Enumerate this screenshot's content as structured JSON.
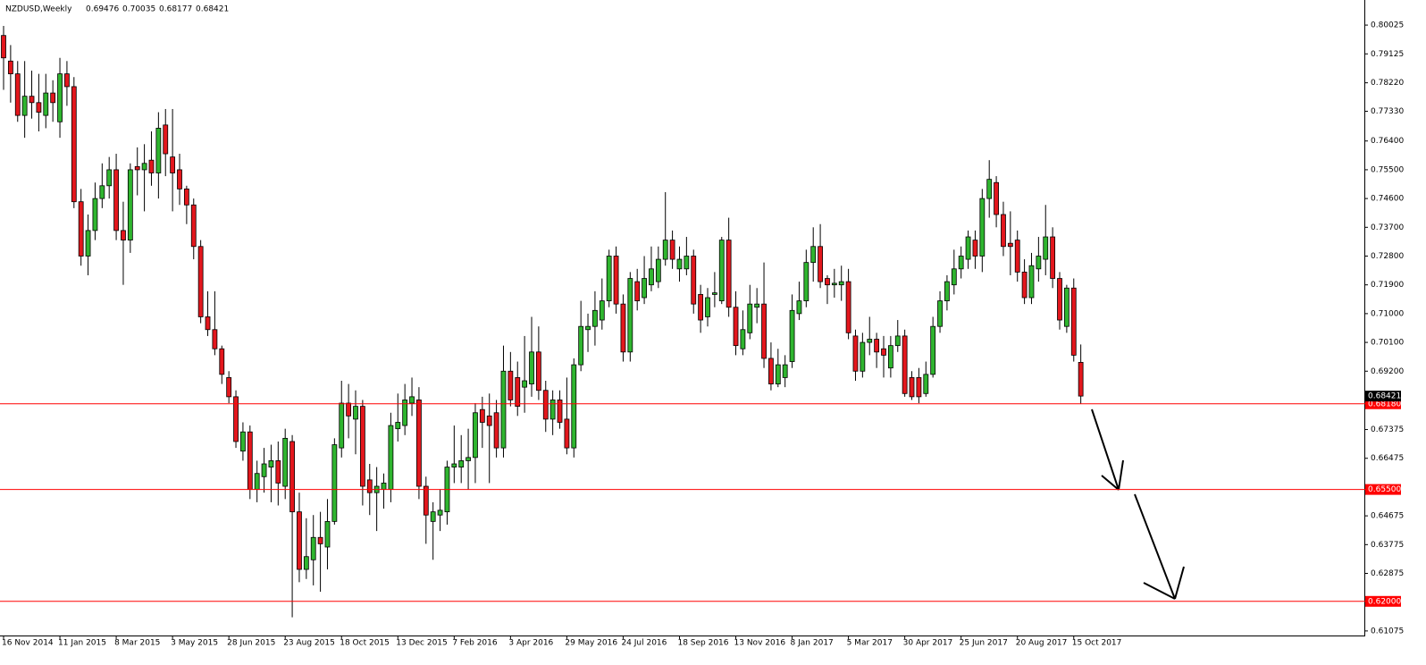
{
  "chart_data": {
    "type": "candlestick",
    "symbol": "NZDUSD,Weekly",
    "bull_color": "#2fb52f",
    "bear_color": "#e3171d",
    "level_color": "#ff0000",
    "ylim": [
      0.6096,
      0.8067
    ],
    "yticks": [
      0.80025,
      0.79125,
      {
        "value": 0.7822,
        "label": "0.78220"
      },
      {
        "value": 0.7733,
        "label": "0.77330"
      },
      {
        "value": 0.764,
        "label": "0.76400"
      },
      {
        "value": 0.755,
        "label": "0.75500"
      },
      {
        "value": 0.746,
        "label": "0.74600"
      },
      {
        "value": 0.737,
        "label": "0.73700"
      },
      {
        "value": 0.728,
        "label": "0.72800"
      },
      {
        "value": 0.719,
        "label": "0.71900"
      },
      {
        "value": 0.71,
        "label": "0.71000"
      },
      {
        "value": 0.701,
        "label": "0.70100"
      },
      {
        "value": 0.692,
        "label": "0.69200"
      },
      0.67375,
      0.66475,
      0.64675,
      0.63775,
      0.62875,
      0.61075
    ],
    "levels": [
      {
        "value": 0.6818,
        "label": "0.68180"
      },
      {
        "value": 0.655,
        "label": "0.65500"
      },
      {
        "value": 0.62,
        "label": "0.62000"
      }
    ],
    "categories": [
      "16 Nov 2014",
      null,
      null,
      null,
      null,
      null,
      null,
      null,
      "11 Jan 2015",
      null,
      null,
      null,
      null,
      null,
      null,
      null,
      "8 Mar 2015",
      null,
      null,
      null,
      null,
      null,
      null,
      null,
      "3 May 2015",
      null,
      null,
      null,
      null,
      null,
      null,
      null,
      "28 Jun 2015",
      null,
      null,
      null,
      null,
      null,
      null,
      null,
      "23 Aug 2015",
      null,
      null,
      null,
      null,
      null,
      null,
      null,
      "18 Oct 2015",
      null,
      null,
      null,
      null,
      null,
      null,
      null,
      "13 Dec 2015",
      null,
      null,
      null,
      null,
      null,
      null,
      null,
      "7 Feb 2016",
      null,
      null,
      null,
      null,
      null,
      null,
      null,
      "3 Apr 2016",
      null,
      null,
      null,
      null,
      null,
      null,
      null,
      "29 May 2016",
      null,
      null,
      null,
      null,
      null,
      null,
      null,
      "24 Jul 2016",
      null,
      null,
      null,
      null,
      null,
      null,
      null,
      "18 Sep 2016",
      null,
      null,
      null,
      null,
      null,
      null,
      null,
      "13 Nov 2016",
      null,
      null,
      null,
      null,
      null,
      null,
      null,
      "8 Jan 2017",
      null,
      null,
      null,
      null,
      null,
      null,
      null,
      "5 Mar 2017",
      null,
      null,
      null,
      null,
      null,
      null,
      null,
      "30 Apr 2017",
      null,
      null,
      null,
      null,
      null,
      null,
      null,
      "25 Jun 2017",
      null,
      null,
      null,
      null,
      null,
      null,
      null,
      "20 Aug 2017",
      null,
      null,
      null,
      null,
      null,
      null,
      null,
      "15 Oct 2017",
      null
    ],
    "ohlc": [
      [
        0.797,
        0.8,
        0.78,
        0.79
      ],
      [
        0.789,
        0.794,
        0.776,
        0.785
      ],
      [
        0.785,
        0.789,
        0.77,
        0.772
      ],
      [
        0.772,
        0.789,
        0.765,
        0.778
      ],
      [
        0.778,
        0.786,
        0.771,
        0.776
      ],
      [
        0.776,
        0.785,
        0.767,
        0.773
      ],
      [
        0.772,
        0.785,
        0.768,
        0.779
      ],
      [
        0.779,
        0.783,
        0.77,
        0.776
      ],
      [
        0.77,
        0.79,
        0.765,
        0.785
      ],
      [
        0.785,
        0.789,
        0.775,
        0.781
      ],
      [
        0.781,
        0.784,
        0.743,
        0.745
      ],
      [
        0.745,
        0.749,
        0.725,
        0.728
      ],
      [
        0.728,
        0.741,
        0.722,
        0.736
      ],
      [
        0.736,
        0.751,
        0.733,
        0.746
      ],
      [
        0.746,
        0.757,
        0.743,
        0.75
      ],
      [
        0.75,
        0.759,
        0.746,
        0.755
      ],
      [
        0.755,
        0.76,
        0.733,
        0.736
      ],
      [
        0.736,
        0.745,
        0.719,
        0.733
      ],
      [
        0.733,
        0.757,
        0.729,
        0.755
      ],
      [
        0.756,
        0.762,
        0.747,
        0.755
      ],
      [
        0.755,
        0.763,
        0.742,
        0.757
      ],
      [
        0.758,
        0.767,
        0.75,
        0.754
      ],
      [
        0.754,
        0.773,
        0.746,
        0.768
      ],
      [
        0.769,
        0.774,
        0.753,
        0.76
      ],
      [
        0.759,
        0.774,
        0.742,
        0.754
      ],
      [
        0.755,
        0.76,
        0.744,
        0.749
      ],
      [
        0.749,
        0.75,
        0.738,
        0.744
      ],
      [
        0.744,
        0.746,
        0.727,
        0.731
      ],
      [
        0.731,
        0.733,
        0.707,
        0.709
      ],
      [
        0.709,
        0.717,
        0.703,
        0.705
      ],
      [
        0.705,
        0.717,
        0.697,
        0.699
      ],
      [
        0.699,
        0.7,
        0.688,
        0.691
      ],
      [
        0.69,
        0.692,
        0.682,
        0.684
      ],
      [
        0.684,
        0.686,
        0.668,
        0.67
      ],
      [
        0.667,
        0.676,
        0.664,
        0.673
      ],
      [
        0.673,
        0.675,
        0.652,
        0.655
      ],
      [
        0.655,
        0.664,
        0.651,
        0.66
      ],
      [
        0.659,
        0.668,
        0.654,
        0.663
      ],
      [
        0.662,
        0.669,
        0.651,
        0.664
      ],
      [
        0.664,
        0.67,
        0.65,
        0.657
      ],
      [
        0.656,
        0.674,
        0.652,
        0.671
      ],
      [
        0.67,
        0.672,
        0.615,
        0.648
      ],
      [
        0.648,
        0.654,
        0.626,
        0.63
      ],
      [
        0.63,
        0.646,
        0.627,
        0.634
      ],
      [
        0.633,
        0.647,
        0.625,
        0.64
      ],
      [
        0.64,
        0.648,
        0.623,
        0.638
      ],
      [
        0.637,
        0.652,
        0.63,
        0.645
      ],
      [
        0.645,
        0.671,
        0.644,
        0.669
      ],
      [
        0.668,
        0.689,
        0.665,
        0.682
      ],
      [
        0.682,
        0.688,
        0.671,
        0.678
      ],
      [
        0.677,
        0.686,
        0.666,
        0.681
      ],
      [
        0.681,
        0.683,
        0.65,
        0.656
      ],
      [
        0.658,
        0.663,
        0.647,
        0.654
      ],
      [
        0.654,
        0.662,
        0.642,
        0.656
      ],
      [
        0.655,
        0.66,
        0.649,
        0.657
      ],
      [
        0.655,
        0.679,
        0.651,
        0.675
      ],
      [
        0.674,
        0.685,
        0.67,
        0.676
      ],
      [
        0.675,
        0.688,
        0.672,
        0.683
      ],
      [
        0.682,
        0.69,
        0.678,
        0.684
      ],
      [
        0.683,
        0.687,
        0.652,
        0.656
      ],
      [
        0.656,
        0.659,
        0.638,
        0.647
      ],
      [
        0.645,
        0.651,
        0.633,
        0.648
      ],
      [
        0.647,
        0.655,
        0.642,
        0.6485
      ],
      [
        0.648,
        0.664,
        0.644,
        0.662
      ],
      [
        0.662,
        0.675,
        0.657,
        0.663
      ],
      [
        0.662,
        0.672,
        0.657,
        0.664
      ],
      [
        0.664,
        0.674,
        0.655,
        0.665
      ],
      [
        0.665,
        0.682,
        0.657,
        0.679
      ],
      [
        0.68,
        0.684,
        0.668,
        0.676
      ],
      [
        0.678,
        0.685,
        0.657,
        0.675
      ],
      [
        0.679,
        0.683,
        0.665,
        0.668
      ],
      [
        0.668,
        0.7,
        0.665,
        0.692
      ],
      [
        0.692,
        0.698,
        0.681,
        0.683
      ],
      [
        0.69,
        0.695,
        0.678,
        0.681
      ],
      [
        0.687,
        0.703,
        0.679,
        0.689
      ],
      [
        0.688,
        0.709,
        0.684,
        0.698
      ],
      [
        0.698,
        0.706,
        0.683,
        0.686
      ],
      [
        0.686,
        0.689,
        0.673,
        0.677
      ],
      [
        0.677,
        0.686,
        0.672,
        0.683
      ],
      [
        0.683,
        0.686,
        0.674,
        0.676
      ],
      [
        0.677,
        0.69,
        0.666,
        0.668
      ],
      [
        0.668,
        0.696,
        0.665,
        0.694
      ],
      [
        0.694,
        0.714,
        0.692,
        0.706
      ],
      [
        0.705,
        0.71,
        0.698,
        0.706
      ],
      [
        0.706,
        0.717,
        0.7,
        0.711
      ],
      [
        0.708,
        0.721,
        0.705,
        0.714
      ],
      [
        0.714,
        0.73,
        0.712,
        0.728
      ],
      [
        0.728,
        0.731,
        0.71,
        0.713
      ],
      [
        0.713,
        0.716,
        0.695,
        0.698
      ],
      [
        0.698,
        0.723,
        0.695,
        0.721
      ],
      [
        0.72,
        0.724,
        0.711,
        0.714
      ],
      [
        0.715,
        0.728,
        0.713,
        0.721
      ],
      [
        0.719,
        0.731,
        0.717,
        0.724
      ],
      [
        0.72,
        0.731,
        0.718,
        0.727
      ],
      [
        0.727,
        0.748,
        0.725,
        0.733
      ],
      [
        0.733,
        0.736,
        0.724,
        0.727
      ],
      [
        0.724,
        0.731,
        0.72,
        0.727
      ],
      [
        0.724,
        0.734,
        0.722,
        0.728
      ],
      [
        0.728,
        0.73,
        0.71,
        0.713
      ],
      [
        0.716,
        0.719,
        0.704,
        0.708
      ],
      [
        0.709,
        0.718,
        0.706,
        0.715
      ],
      [
        0.716,
        0.723,
        0.712,
        0.7165
      ],
      [
        0.714,
        0.734,
        0.713,
        0.733
      ],
      [
        0.733,
        0.74,
        0.709,
        0.712
      ],
      [
        0.712,
        0.717,
        0.697,
        0.7
      ],
      [
        0.699,
        0.711,
        0.697,
        0.705
      ],
      [
        0.704,
        0.719,
        0.702,
        0.713
      ],
      [
        0.712,
        0.718,
        0.707,
        0.713
      ],
      [
        0.713,
        0.726,
        0.693,
        0.696
      ],
      [
        0.696,
        0.701,
        0.686,
        0.688
      ],
      [
        0.688,
        0.699,
        0.687,
        0.694
      ],
      [
        0.69,
        0.697,
        0.687,
        0.694
      ],
      [
        0.695,
        0.716,
        0.693,
        0.711
      ],
      [
        0.71,
        0.72,
        0.708,
        0.714
      ],
      [
        0.714,
        0.73,
        0.712,
        0.726
      ],
      [
        0.726,
        0.737,
        0.72,
        0.731
      ],
      [
        0.731,
        0.738,
        0.718,
        0.72
      ],
      [
        0.721,
        0.722,
        0.713,
        0.719
      ],
      [
        0.719,
        0.724,
        0.715,
        0.7195
      ],
      [
        0.719,
        0.725,
        0.714,
        0.72
      ],
      [
        0.72,
        0.724,
        0.702,
        0.704
      ],
      [
        0.703,
        0.705,
        0.689,
        0.692
      ],
      [
        0.692,
        0.704,
        0.69,
        0.701
      ],
      [
        0.701,
        0.709,
        0.697,
        0.702
      ],
      [
        0.702,
        0.704,
        0.693,
        0.698
      ],
      [
        0.699,
        0.703,
        0.69,
        0.697
      ],
      [
        0.693,
        0.703,
        0.69,
        0.7
      ],
      [
        0.7,
        0.708,
        0.698,
        0.703
      ],
      [
        0.703,
        0.705,
        0.684,
        0.685
      ],
      [
        0.69,
        0.692,
        0.683,
        0.684
      ],
      [
        0.69,
        0.693,
        0.682,
        0.684
      ],
      [
        0.685,
        0.695,
        0.684,
        0.691
      ],
      [
        0.691,
        0.709,
        0.69,
        0.706
      ],
      [
        0.706,
        0.717,
        0.704,
        0.714
      ],
      [
        0.714,
        0.722,
        0.711,
        0.72
      ],
      [
        0.719,
        0.73,
        0.716,
        0.724
      ],
      [
        0.724,
        0.731,
        0.721,
        0.728
      ],
      [
        0.727,
        0.736,
        0.724,
        0.734
      ],
      [
        0.733,
        0.736,
        0.724,
        0.728
      ],
      [
        0.728,
        0.749,
        0.723,
        0.746
      ],
      [
        0.746,
        0.758,
        0.74,
        0.752
      ],
      [
        0.751,
        0.753,
        0.737,
        0.741
      ],
      [
        0.741,
        0.745,
        0.728,
        0.731
      ],
      [
        0.732,
        0.742,
        0.722,
        0.731
      ],
      [
        0.733,
        0.736,
        0.72,
        0.723
      ],
      [
        0.723,
        0.727,
        0.713,
        0.715
      ],
      [
        0.715,
        0.729,
        0.713,
        0.725
      ],
      [
        0.724,
        0.734,
        0.72,
        0.728
      ],
      [
        0.727,
        0.744,
        0.722,
        0.734
      ],
      [
        0.734,
        0.737,
        0.718,
        0.721
      ],
      [
        0.721,
        0.723,
        0.705,
        0.708
      ],
      [
        0.706,
        0.719,
        0.704,
        0.718
      ],
      [
        0.718,
        0.721,
        0.695,
        0.697
      ],
      [
        0.69476,
        0.70035,
        0.68177,
        0.68421
      ]
    ]
  }
}
